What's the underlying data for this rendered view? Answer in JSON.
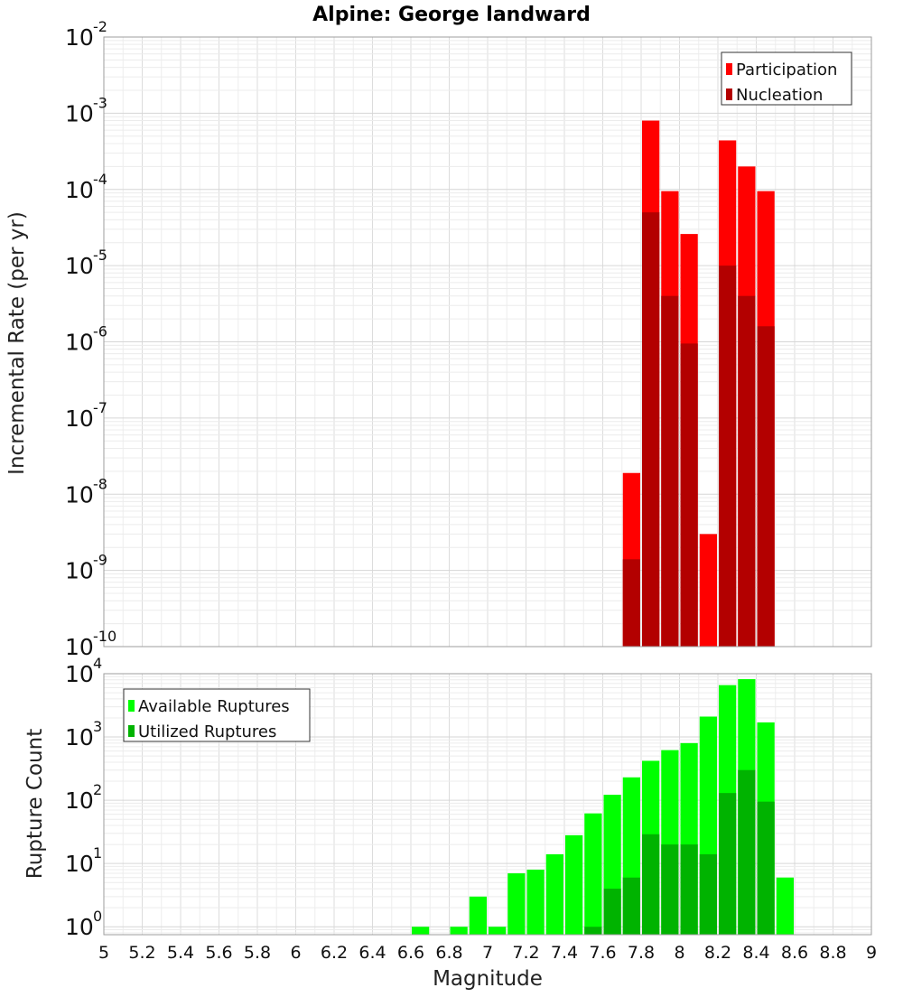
{
  "chart_data": [
    {
      "type": "bar",
      "title": "Alpine: George landward",
      "ylabel": "Incremental Rate (per yr)",
      "xlim": [
        5,
        9
      ],
      "ylim": [
        1e-10,
        0.01
      ],
      "yscale": "log",
      "bin_width": 0.1,
      "grid": true,
      "legend_position": "top-right",
      "yticks": [
        {
          "base": "10",
          "exp": "-10"
        },
        {
          "base": "10",
          "exp": "-9"
        },
        {
          "base": "10",
          "exp": "-8"
        },
        {
          "base": "10",
          "exp": "-7"
        },
        {
          "base": "10",
          "exp": "-6"
        },
        {
          "base": "10",
          "exp": "-5"
        },
        {
          "base": "10",
          "exp": "-4"
        },
        {
          "base": "10",
          "exp": "-3"
        },
        {
          "base": "10",
          "exp": "-2"
        }
      ],
      "x": [
        7.75,
        7.85,
        7.95,
        8.05,
        8.15,
        8.25,
        8.35,
        8.45
      ],
      "series": [
        {
          "name": "Participation",
          "color": "#ff0000",
          "values": [
            1.9e-08,
            0.0008,
            9.5e-05,
            2.6e-05,
            3e-09,
            0.00044,
            0.0002,
            9.5e-05
          ]
        },
        {
          "name": "Nucleation",
          "color": "#b30000",
          "values": [
            1.4e-09,
            5e-05,
            4e-06,
            9.5e-07,
            0,
            1e-05,
            4e-06,
            1.6e-06
          ]
        }
      ]
    },
    {
      "type": "bar",
      "xlabel": "Magnitude",
      "ylabel": "Rupture Count",
      "xlim": [
        5,
        9
      ],
      "ylim": [
        0.75,
        10000
      ],
      "yscale": "log",
      "bin_width": 0.1,
      "grid": true,
      "legend_position": "top-left",
      "xticks": [
        "5",
        "5.2",
        "5.4",
        "5.6",
        "5.8",
        "6",
        "6.2",
        "6.4",
        "6.6",
        "6.8",
        "7",
        "7.2",
        "7.4",
        "7.6",
        "7.8",
        "8",
        "8.2",
        "8.4",
        "8.6",
        "8.8",
        "9"
      ],
      "yticks": [
        {
          "base": "10",
          "exp": "0"
        },
        {
          "base": "10",
          "exp": "1"
        },
        {
          "base": "10",
          "exp": "2"
        },
        {
          "base": "10",
          "exp": "3"
        },
        {
          "base": "10",
          "exp": "4"
        }
      ],
      "x": [
        6.65,
        6.85,
        6.95,
        7.05,
        7.15,
        7.25,
        7.35,
        7.45,
        7.55,
        7.65,
        7.75,
        7.85,
        7.95,
        8.05,
        8.15,
        8.25,
        8.35,
        8.45,
        8.55
      ],
      "series": [
        {
          "name": "Available Ruptures",
          "color": "#00ff00",
          "values": [
            1,
            1,
            3,
            1,
            7,
            8,
            14,
            28,
            62,
            122,
            230,
            420,
            620,
            800,
            2100,
            6600,
            8200,
            1700,
            6
          ]
        },
        {
          "name": "Utilized Ruptures",
          "color": "#00b300",
          "values": [
            0,
            0,
            0,
            0,
            0,
            0,
            0,
            0,
            1,
            4,
            6,
            29,
            20,
            20,
            14,
            130,
            300,
            95,
            0
          ]
        }
      ]
    }
  ]
}
